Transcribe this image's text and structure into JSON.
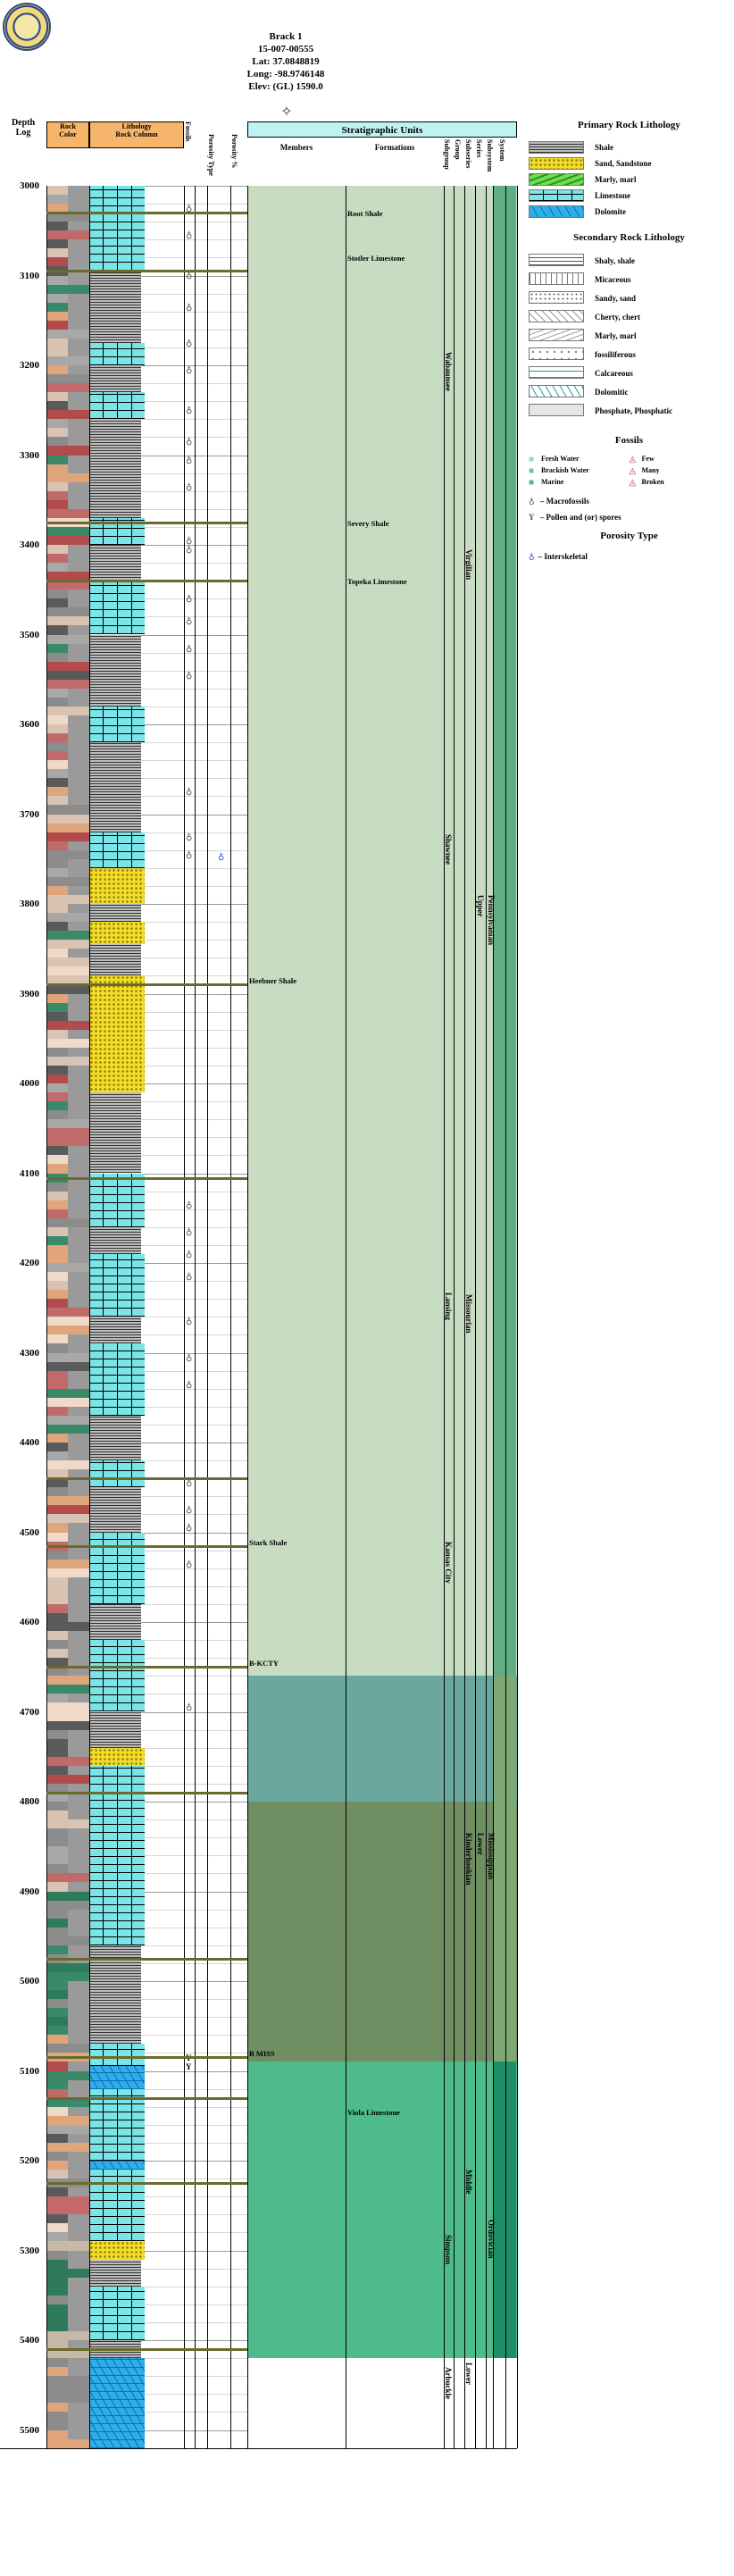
{
  "header": {
    "well_name": "Brack 1",
    "api": "15-007-00555",
    "lat": "Lat: 37.0848819",
    "long": "Long: -98.9746148",
    "elev": "Elev: (GL) 1590.0"
  },
  "columns": {
    "depth": "Depth",
    "log": "Log",
    "rock_color_1": "Rock",
    "rock_color_2": "Color",
    "lithology": "Lithology",
    "rock_column": "Rock Column",
    "fossils": "Fossils",
    "porosity_type": "Porosity Type",
    "porosity_pct": "Porosity %",
    "strat_units": "Stratigraphic Units",
    "members": "Members",
    "formations": "Formations",
    "subgroup": "Subgroup",
    "group": "Group",
    "subseries": "Subseries",
    "series": "Series",
    "subsystem": "Subsystem",
    "system": "System"
  },
  "depths": [
    "3000",
    "3100",
    "3200",
    "3300",
    "3400",
    "3500",
    "3600",
    "3700",
    "3800",
    "3900",
    "4000",
    "4100",
    "4200",
    "4300",
    "4400",
    "4500",
    "4600",
    "4700",
    "4800",
    "4900",
    "5000",
    "5100",
    "5200",
    "5300",
    "5400",
    "5500"
  ],
  "members": [
    {
      "name": "Heebner Shale",
      "depth": 3890
    },
    {
      "name": "Stark Shale",
      "depth": 4515
    },
    {
      "name": "B-KCTY",
      "depth": 4650
    },
    {
      "name": "B MISS",
      "depth": 5085
    }
  ],
  "formations": [
    {
      "name": "Root Shale",
      "depth": 3035
    },
    {
      "name": "Stotler Limestone",
      "depth": 3085
    },
    {
      "name": "Severy Shale",
      "depth": 3380
    },
    {
      "name": "Topeka Limestone",
      "depth": 3445
    },
    {
      "name": "Viola Limestone",
      "depth": 5150
    }
  ],
  "groups": [
    {
      "name": "Wabaunsee",
      "top": 3030,
      "bottom": 3420
    },
    {
      "name": "Shawnee",
      "top": 3420,
      "bottom": 4105
    },
    {
      "name": "Lansing",
      "top": 4105,
      "bottom": 4440
    },
    {
      "name": "Kansas City",
      "top": 4440,
      "bottom": 4660
    },
    {
      "name": "Simpson",
      "top": 5225,
      "bottom": 5420
    },
    {
      "name": "Arbuckle",
      "top": 5420,
      "bottom": 5520
    }
  ],
  "series": [
    {
      "name": "Virgilian",
      "top": 3000,
      "bottom": 3890
    },
    {
      "name": "Missourian",
      "top": 3890,
      "bottom": 4660
    },
    {
      "name": "Kinderhookian",
      "top": 4660,
      "bottom": 5090
    },
    {
      "name": "Middle",
      "top": 5090,
      "bottom": 5410
    },
    {
      "name": "Lower",
      "top": 5410,
      "bottom": 5520
    }
  ],
  "subsystems": [
    {
      "name": "Upper",
      "top": 3000,
      "bottom": 4660
    },
    {
      "name": "Lower",
      "top": 4660,
      "bottom": 5090
    }
  ],
  "systems": [
    {
      "name": "Pennsylvanian",
      "top": 3000,
      "bottom": 4660
    },
    {
      "name": "Mississippian",
      "top": 4660,
      "bottom": 5090
    },
    {
      "name": "Ordovician",
      "top": 5090,
      "bottom": 5520
    }
  ],
  "legend": {
    "primary_title": "Primary Rock Lithology",
    "primary": [
      {
        "label": "Shale",
        "key": "shale"
      },
      {
        "label": "Sand, Sandstone",
        "key": "sand"
      },
      {
        "label": "Marly, marl",
        "key": "marl"
      },
      {
        "label": "Limestone",
        "key": "limestone"
      },
      {
        "label": "Dolomite",
        "key": "dolomite"
      }
    ],
    "secondary_title": "Secondary Rock Lithology",
    "secondary": [
      {
        "label": "Shaly, shale"
      },
      {
        "label": "Micaceous"
      },
      {
        "label": "Sandy, sand"
      },
      {
        "label": "Cherty, chert"
      },
      {
        "label": "Marly, marl"
      },
      {
        "label": "fossiliferous"
      },
      {
        "label": "Calcareous"
      },
      {
        "label": "Dolomitic"
      },
      {
        "label": "Phosphate, Phosphatic"
      }
    ],
    "fossils_title": "Fossils",
    "fossils": [
      {
        "label": "Fresh Water",
        "color": "#9dd6c9"
      },
      {
        "label": "Few"
      },
      {
        "label": "Brackish Water",
        "color": "#7fb3b3"
      },
      {
        "label": "Many"
      },
      {
        "label": "Marine",
        "color": "#4bb69a"
      },
      {
        "label": "Broken"
      }
    ],
    "fossil_types": [
      {
        "label": "Macrofossils",
        "glyph": "♁"
      },
      {
        "label": "Pollen and (or) spores",
        "glyph": "Y"
      }
    ],
    "porosity_title": "Porosity Type",
    "porosity": [
      {
        "label": "Interskeletal",
        "glyph": "♁"
      }
    ]
  },
  "colors": {
    "header_orange": "#f6b56b",
    "header_cyan": "#bff3f3",
    "penn_green": "#c8dcc2",
    "kcty_teal": "#6aa79e",
    "miss_green": "#6f8e62",
    "ordo_green": "#4dbb8a",
    "shale_gray": "#8c8c8c",
    "limestone_cyan": "#7be4e6",
    "dolomite_blue": "#2faee8",
    "sand_yellow": "#f2dc2c",
    "marker_olive": "#6b6a2e"
  }
}
